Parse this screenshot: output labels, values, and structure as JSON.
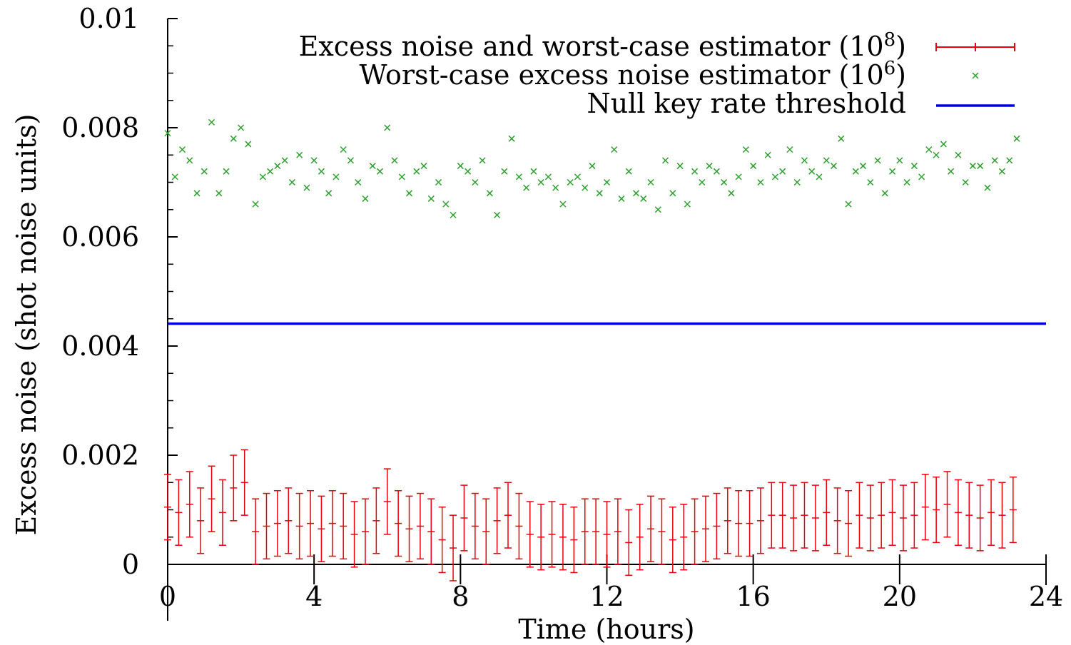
{
  "chart_data": {
    "type": "scatter",
    "xlabel": "Time (hours)",
    "ylabel": "Excess noise (shot noise units)",
    "xlim": [
      0,
      24
    ],
    "ylim": [
      0,
      0.01
    ],
    "xticks": [
      0,
      4,
      8,
      12,
      16,
      20,
      24
    ],
    "xtick_labels": [
      "0",
      "4",
      "8",
      "12",
      "16",
      "20",
      "24"
    ],
    "yticks": [
      0,
      0.002,
      0.004,
      0.006,
      0.008,
      0.01
    ],
    "ytick_labels": [
      "0",
      "0.002",
      "0.004",
      "0.006",
      "0.008",
      "0.01"
    ],
    "grid": false,
    "legend_position": "top-right",
    "series": [
      {
        "name": "Excess noise and worst-case estimator (10^8)",
        "legend_label": "Excess noise and worst-case estimator (10",
        "legend_exponent": "8",
        "color": "#e8000b",
        "style": "errorbars",
        "x": [
          0.0,
          0.3,
          0.6,
          0.9,
          1.2,
          1.5,
          1.8,
          2.1,
          2.4,
          2.7,
          3.0,
          3.3,
          3.6,
          3.9,
          4.2,
          4.5,
          4.8,
          5.1,
          5.4,
          5.7,
          6.0,
          6.3,
          6.6,
          6.9,
          7.2,
          7.5,
          7.8,
          8.1,
          8.4,
          8.7,
          9.0,
          9.3,
          9.6,
          9.9,
          10.2,
          10.5,
          10.8,
          11.1,
          11.4,
          11.7,
          12.0,
          12.3,
          12.6,
          12.9,
          13.2,
          13.5,
          13.8,
          14.1,
          14.4,
          14.7,
          15.0,
          15.3,
          15.6,
          15.9,
          16.2,
          16.5,
          16.8,
          17.1,
          17.4,
          17.7,
          18.0,
          18.3,
          18.6,
          18.9,
          19.2,
          19.5,
          19.8,
          20.1,
          20.4,
          20.7,
          21.0,
          21.3,
          21.6,
          21.9,
          22.2,
          22.5,
          22.8,
          23.1
        ],
        "y": [
          0.00105,
          0.00095,
          0.0011,
          0.0008,
          0.0012,
          0.00095,
          0.0014,
          0.0015,
          0.0006,
          0.0007,
          0.00075,
          0.0008,
          0.0007,
          0.00075,
          0.00065,
          0.00075,
          0.0007,
          0.00055,
          0.0006,
          0.0008,
          0.00115,
          0.00075,
          0.00065,
          0.0007,
          0.0006,
          0.00045,
          0.0003,
          0.00085,
          0.0007,
          0.0006,
          0.0008,
          0.0009,
          0.0007,
          0.00055,
          0.0005,
          0.00055,
          0.0005,
          0.00045,
          0.0006,
          0.0006,
          0.00055,
          0.0006,
          0.0004,
          0.0005,
          0.00065,
          0.0006,
          0.00045,
          0.0005,
          0.0006,
          0.00065,
          0.0007,
          0.0008,
          0.00075,
          0.00075,
          0.0008,
          0.0009,
          0.0009,
          0.00085,
          0.0009,
          0.00085,
          0.00095,
          0.0008,
          0.00075,
          0.0009,
          0.00085,
          0.0009,
          0.00095,
          0.00085,
          0.0009,
          0.00105,
          0.001,
          0.0011,
          0.00095,
          0.0009,
          0.00085,
          0.00095,
          0.0009,
          0.001
        ],
        "err": [
          0.0006,
          0.0006,
          0.0006,
          0.0006,
          0.0006,
          0.0006,
          0.0006,
          0.0006,
          0.0006,
          0.0006,
          0.0006,
          0.0006,
          0.0006,
          0.0006,
          0.0006,
          0.0006,
          0.0006,
          0.0006,
          0.0006,
          0.0006,
          0.0006,
          0.0006,
          0.0006,
          0.0006,
          0.0006,
          0.0006,
          0.0006,
          0.0006,
          0.0006,
          0.0006,
          0.0006,
          0.0006,
          0.0006,
          0.0006,
          0.0006,
          0.0006,
          0.0006,
          0.0006,
          0.0006,
          0.0006,
          0.0006,
          0.0006,
          0.0006,
          0.0006,
          0.0006,
          0.0006,
          0.0006,
          0.0006,
          0.0006,
          0.0006,
          0.0006,
          0.0006,
          0.0006,
          0.0006,
          0.0006,
          0.0006,
          0.0006,
          0.0006,
          0.0006,
          0.0006,
          0.0006,
          0.0006,
          0.0006,
          0.0006,
          0.0006,
          0.0006,
          0.0006,
          0.0006,
          0.0006,
          0.0006,
          0.0006,
          0.0006,
          0.0006,
          0.0006,
          0.0006,
          0.0006,
          0.0006,
          0.0006
        ]
      },
      {
        "name": "Worst-case excess noise estimator (10^6)",
        "legend_label": "Worst-case excess noise estimator (10",
        "legend_exponent": "6",
        "color": "#2ca02c",
        "style": "x-markers",
        "x": [
          0.0,
          0.2,
          0.4,
          0.6,
          0.8,
          1.0,
          1.2,
          1.4,
          1.6,
          1.8,
          2.0,
          2.2,
          2.4,
          2.6,
          2.8,
          3.0,
          3.2,
          3.4,
          3.6,
          3.8,
          4.0,
          4.2,
          4.4,
          4.6,
          4.8,
          5.0,
          5.2,
          5.4,
          5.6,
          5.8,
          6.0,
          6.2,
          6.4,
          6.6,
          6.8,
          7.0,
          7.2,
          7.4,
          7.6,
          7.8,
          8.0,
          8.2,
          8.4,
          8.6,
          8.8,
          9.0,
          9.2,
          9.4,
          9.6,
          9.8,
          10.0,
          10.2,
          10.4,
          10.6,
          10.8,
          11.0,
          11.2,
          11.4,
          11.6,
          11.8,
          12.0,
          12.2,
          12.4,
          12.6,
          12.8,
          13.0,
          13.2,
          13.4,
          13.6,
          13.8,
          14.0,
          14.2,
          14.4,
          14.6,
          14.8,
          15.0,
          15.2,
          15.4,
          15.6,
          15.8,
          16.0,
          16.2,
          16.4,
          16.6,
          16.8,
          17.0,
          17.2,
          17.4,
          17.6,
          17.8,
          18.0,
          18.2,
          18.4,
          18.6,
          18.8,
          19.0,
          19.2,
          19.4,
          19.6,
          19.8,
          20.0,
          20.2,
          20.4,
          20.6,
          20.8,
          21.0,
          21.2,
          21.4,
          21.6,
          21.8,
          22.0,
          22.2,
          22.4,
          22.6,
          22.8,
          23.0,
          23.2
        ],
        "y": [
          0.0079,
          0.0071,
          0.0076,
          0.0074,
          0.0068,
          0.0072,
          0.0081,
          0.0068,
          0.0072,
          0.0078,
          0.008,
          0.0077,
          0.0066,
          0.0071,
          0.0072,
          0.0073,
          0.0074,
          0.007,
          0.0075,
          0.0069,
          0.0074,
          0.0072,
          0.0068,
          0.0071,
          0.0076,
          0.0074,
          0.007,
          0.0067,
          0.0073,
          0.0072,
          0.008,
          0.0074,
          0.0071,
          0.0068,
          0.0072,
          0.0073,
          0.0067,
          0.007,
          0.0066,
          0.0064,
          0.0073,
          0.0072,
          0.007,
          0.0074,
          0.0068,
          0.0064,
          0.0072,
          0.0078,
          0.0071,
          0.0069,
          0.0072,
          0.007,
          0.0071,
          0.0069,
          0.0066,
          0.007,
          0.0071,
          0.0069,
          0.0073,
          0.0068,
          0.007,
          0.0076,
          0.0067,
          0.0072,
          0.0068,
          0.0067,
          0.007,
          0.0065,
          0.0074,
          0.0068,
          0.0073,
          0.0066,
          0.0072,
          0.007,
          0.0073,
          0.0072,
          0.007,
          0.0068,
          0.0071,
          0.0076,
          0.0073,
          0.007,
          0.0075,
          0.0071,
          0.0072,
          0.0076,
          0.007,
          0.0074,
          0.0072,
          0.0071,
          0.0074,
          0.0073,
          0.0078,
          0.0066,
          0.0072,
          0.0073,
          0.007,
          0.0074,
          0.0068,
          0.0072,
          0.0074,
          0.007,
          0.0073,
          0.0071,
          0.0076,
          0.0075,
          0.0077,
          0.0072,
          0.0075,
          0.007,
          0.0073,
          0.0073,
          0.0069,
          0.0074,
          0.0072,
          0.0074,
          0.0078
        ]
      },
      {
        "name": "Null key rate threshold",
        "legend_label": "Null key rate threshold",
        "color": "#0000e0",
        "style": "line",
        "x": [
          0,
          24
        ],
        "y": [
          0.00441,
          0.00441
        ]
      }
    ]
  }
}
